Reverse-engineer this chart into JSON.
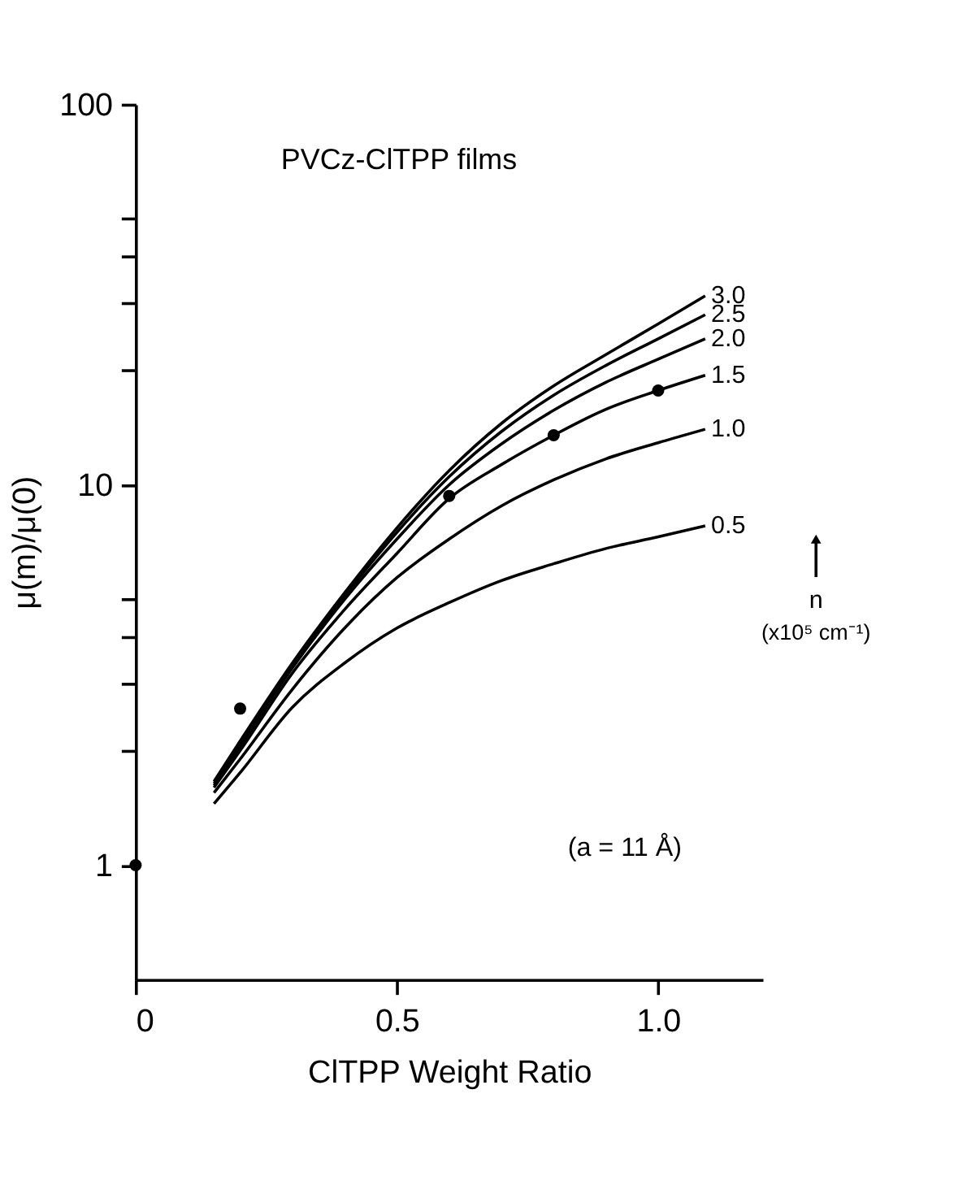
{
  "chart_data": {
    "type": "line",
    "xlabel": "ClTPP Weight Ratio",
    "ylabel": "μ(m)/μ(0)",
    "annotations": [
      "PVCz-ClTPP films",
      "(a = 11 Å)",
      "n",
      "(x10⁵ cm⁻¹)"
    ],
    "xlim": [
      0,
      1.2
    ],
    "xticks": [
      0,
      0.5,
      {
        "value": 1.0,
        "label": "1.0"
      }
    ],
    "ylim": [
      0.5,
      100
    ],
    "log": "y",
    "yticks": [
      1,
      {
        "value": 2,
        "label": null
      },
      {
        "value": 3,
        "label": null
      },
      {
        "value": 4,
        "label": null
      },
      {
        "value": 5,
        "label": null
      },
      10,
      {
        "value": 20,
        "label": null
      },
      {
        "value": 30,
        "label": null
      },
      {
        "value": 40,
        "label": null
      },
      {
        "value": 50,
        "label": null
      },
      100
    ],
    "grid": false,
    "line_style": "solid",
    "series": [
      {
        "name": "3.0",
        "color": "#000000",
        "marker": "none",
        "x": [
          0.15,
          0.2,
          0.3,
          0.4,
          0.5,
          0.6,
          0.7,
          0.8,
          0.9,
          1.0,
          1.09
        ],
        "values": [
          1.66,
          2.12,
          3.4,
          5.2,
          7.7,
          10.9,
          14.5,
          18.2,
          22.0,
          26.5,
          31.4
        ]
      },
      {
        "name": "2.5",
        "color": "#000000",
        "marker": "none",
        "x": [
          0.15,
          0.2,
          0.3,
          0.4,
          0.5,
          0.6,
          0.7,
          0.8,
          0.9,
          1.0,
          1.09
        ],
        "values": [
          1.64,
          2.1,
          3.35,
          5.1,
          7.5,
          10.5,
          13.8,
          17.2,
          20.6,
          24.2,
          28
        ]
      },
      {
        "name": "2.0",
        "color": "#000000",
        "marker": "none",
        "x": [
          0.15,
          0.2,
          0.3,
          0.4,
          0.5,
          0.6,
          0.7,
          0.8,
          0.9,
          1.0,
          1.09
        ],
        "values": [
          1.62,
          2.05,
          3.3,
          5.0,
          7.2,
          10.0,
          12.8,
          15.7,
          18.6,
          21.4,
          24.2
        ]
      },
      {
        "name": "1.5",
        "color": "#000000",
        "marker": "none",
        "x": [
          0.15,
          0.2,
          0.3,
          0.4,
          0.5,
          0.6,
          0.7,
          0.8,
          0.9,
          1.0,
          1.09
        ],
        "values": [
          1.6,
          2.0,
          3.2,
          4.7,
          6.6,
          9.2,
          11.3,
          13.5,
          15.8,
          17.7,
          19.4
        ]
      },
      {
        "name": "1.0",
        "color": "#000000",
        "marker": "none",
        "x": [
          0.15,
          0.2,
          0.3,
          0.4,
          0.5,
          0.6,
          0.7,
          0.8,
          0.9,
          1.0,
          1.09
        ],
        "values": [
          1.55,
          1.9,
          2.9,
          4.2,
          5.7,
          7.2,
          8.8,
          10.3,
          11.7,
          12.9,
          14.0
        ]
      },
      {
        "name": "0.5",
        "color": "#000000",
        "marker": "none",
        "x": [
          0.15,
          0.2,
          0.3,
          0.4,
          0.5,
          0.6,
          0.7,
          0.8,
          0.9,
          1.0,
          1.09
        ],
        "values": [
          1.45,
          1.75,
          2.6,
          3.4,
          4.2,
          4.9,
          5.6,
          6.2,
          6.8,
          7.3,
          7.8
        ]
      },
      {
        "type": "scatter",
        "color": "#000000",
        "marker": "circle",
        "x": [
          0,
          0.2,
          0.6,
          0.8,
          1.0
        ],
        "values": [
          1,
          2.58,
          9.35,
          13.5,
          17.7
        ]
      }
    ]
  }
}
